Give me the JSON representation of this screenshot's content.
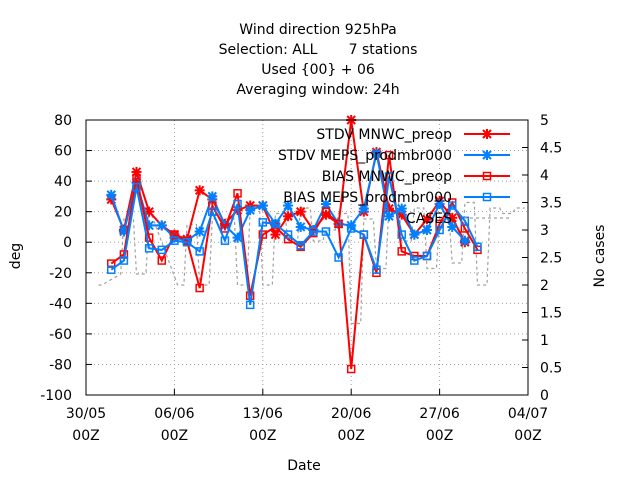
{
  "chart_data": {
    "type": "line",
    "title_lines": [
      "Wind direction 925hPa",
      "Selection: ALL       7 stations",
      "Used {00} + 06",
      "Averaging window: 24h"
    ],
    "xlabel": "Date",
    "ylabel": "deg",
    "y2label": "No cases",
    "ylim": [
      -100,
      80
    ],
    "y2lim": [
      0,
      5
    ],
    "xlim": [
      "2021-05-30T00:00",
      "2021-07-04T00:00"
    ],
    "x_ticks": [
      {
        "date": "30/05",
        "time": "00Z"
      },
      {
        "date": "06/06",
        "time": "00Z"
      },
      {
        "date": "13/06",
        "time": "00Z"
      },
      {
        "date": "20/06",
        "time": "00Z"
      },
      {
        "date": "27/06",
        "time": "00Z"
      },
      {
        "date": "04/07",
        "time": "00Z"
      }
    ],
    "y_ticks": [
      "80",
      "60",
      "40",
      "20",
      "0",
      "-20",
      "-40",
      "-60",
      "-80",
      "-100"
    ],
    "y2_ticks": [
      "5",
      "4.5",
      "4",
      "3.5",
      "3",
      "2.5",
      "2",
      "1.5",
      "1",
      "0.5",
      "0"
    ],
    "grid": true,
    "legend_position": "top-right",
    "x": [
      "2021-06-01T00:00",
      "2021-06-02T00:00",
      "2021-06-03T00:00",
      "2021-06-04T00:00",
      "2021-06-05T00:00",
      "2021-06-06T00:00",
      "2021-06-07T00:00",
      "2021-06-08T00:00",
      "2021-06-09T00:00",
      "2021-06-10T00:00",
      "2021-06-11T00:00",
      "2021-06-12T00:00",
      "2021-06-13T00:00",
      "2021-06-14T00:00",
      "2021-06-15T00:00",
      "2021-06-16T00:00",
      "2021-06-17T00:00",
      "2021-06-18T00:00",
      "2021-06-19T00:00",
      "2021-06-20T00:00",
      "2021-06-21T00:00",
      "2021-06-22T00:00",
      "2021-06-23T00:00",
      "2021-06-24T00:00",
      "2021-06-25T00:00",
      "2021-06-26T00:00",
      "2021-06-27T00:00",
      "2021-06-28T00:00",
      "2021-06-29T00:00",
      "2021-06-30T00:00"
    ],
    "series": [
      {
        "name": "STDV MNWC_preop",
        "axis": "y1",
        "color": "#ff0000",
        "marker": "star",
        "values": [
          28,
          8,
          46,
          20,
          11,
          5,
          2,
          34,
          28,
          12,
          21,
          24,
          24,
          5,
          17,
          20,
          8,
          18,
          12,
          80,
          20,
          59,
          22,
          18,
          5,
          15,
          27,
          16,
          0,
          null
        ]
      },
      {
        "name": "STDV MEPS_prodmbr000",
        "axis": "y1",
        "color": "#0080ff",
        "marker": "star",
        "values": [
          31,
          7,
          39,
          11,
          11,
          3,
          1,
          7,
          30,
          11,
          3,
          21,
          24,
          12,
          24,
          10,
          8,
          25,
          12,
          11,
          22,
          58,
          17,
          22,
          5,
          8,
          25,
          10,
          1,
          null
        ]
      },
      {
        "name": "BIAS MNWC_preop",
        "axis": "y1",
        "color": "#ff0000",
        "marker": "square",
        "values": [
          -14,
          -8,
          42,
          3,
          -12,
          5,
          1,
          -30,
          24,
          9,
          32,
          -35,
          5,
          10,
          2,
          -3,
          6,
          20,
          12,
          -83,
          5,
          -20,
          57,
          -6,
          -9,
          -9,
          12,
          26,
          9,
          -5
        ]
      },
      {
        "name": "BIAS MEPS_prodmbr000",
        "axis": "y1",
        "color": "#0080ff",
        "marker": "square",
        "values": [
          -18,
          -12,
          36,
          -4,
          -5,
          1,
          0,
          -6,
          20,
          1,
          25,
          -41,
          13,
          12,
          5,
          -2,
          7,
          7,
          -10,
          9,
          5,
          -18,
          43,
          5,
          -12,
          -9,
          8,
          24,
          14,
          -3
        ]
      },
      {
        "name": "CASES",
        "axis": "y2",
        "color": "#a0a0a0",
        "dash": "3,3",
        "x": [
          "2021-05-31T00:00",
          "2021-05-31T06:00",
          "2021-06-01T18:00",
          "2021-06-02T00:00",
          "2021-06-02T18:00",
          "2021-06-03T00:00",
          "2021-06-03T18:00",
          "2021-06-04T00:00",
          "2021-06-06T06:00",
          "2021-06-06T18:00",
          "2021-06-07T00:00",
          "2021-06-07T18:00",
          "2021-06-08T00:00",
          "2021-06-08T18:00",
          "2021-06-09T00:00",
          "2021-06-10T18:00",
          "2021-06-11T00:00",
          "2021-06-11T18:00",
          "2021-06-12T00:00",
          "2021-06-12T18:00",
          "2021-06-13T00:00",
          "2021-06-13T18:00",
          "2021-06-14T00:00",
          "2021-06-14T18:00",
          "2021-06-15T00:00",
          "2021-06-15T18:00",
          "2021-06-16T00:00",
          "2021-06-16T18:00",
          "2021-06-17T00:00",
          "2021-06-17T18:00",
          "2021-06-18T00:00",
          "2021-06-18T18:00",
          "2021-06-19T00:00",
          "2021-06-19T18:00",
          "2021-06-20T00:00",
          "2021-06-20T18:00",
          "2021-06-21T00:00",
          "2021-06-21T18:00",
          "2021-06-22T00:00",
          "2021-06-22T18:00",
          "2021-06-23T00:00",
          "2021-06-23T18:00",
          "2021-06-24T00:00",
          "2021-06-24T18:00",
          "2021-06-25T00:00",
          "2021-06-25T18:00",
          "2021-06-26T00:00",
          "2021-06-26T18:00",
          "2021-06-27T00:00",
          "2021-06-27T18:00",
          "2021-06-28T00:00",
          "2021-06-28T18:00",
          "2021-06-29T00:00",
          "2021-06-29T18:00",
          "2021-06-30T00:00",
          "2021-06-30T18:00",
          "2021-07-01T00:00",
          "2021-07-01T18:00",
          "2021-07-02T00:00",
          "2021-07-02T18:00",
          "2021-07-03T00:00",
          "2021-07-03T18:00"
        ],
        "values": [
          2,
          2,
          2.2,
          3.2,
          3.2,
          2.2,
          2.2,
          3.4,
          2,
          2,
          3.1,
          3.1,
          2,
          2,
          3.2,
          3.2,
          2,
          2,
          3.4,
          3.4,
          2,
          2,
          3.3,
          3.3,
          2.8,
          2.8,
          3.4,
          3.4,
          2.8,
          2.8,
          3.0,
          3.0,
          3.3,
          3.3,
          1.3,
          1.3,
          3.2,
          3.2,
          2.3,
          2.3,
          3.5,
          3.5,
          2.8,
          2.8,
          3.4,
          3.4,
          2.3,
          2.3,
          3.2,
          3.2,
          2.4,
          2.4,
          3.5,
          3.5,
          2.0,
          2.0,
          3.4,
          3.4,
          3.3,
          3.3,
          3.4,
          3.4
        ]
      }
    ]
  }
}
